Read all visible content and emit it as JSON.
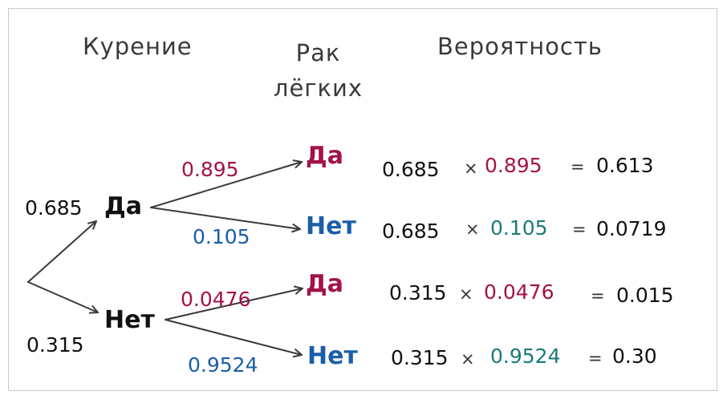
{
  "colors": {
    "yes": "#a3124a",
    "no": "#1a5ea8",
    "no_result": "#1b7a7a",
    "text": "#111111",
    "arrow": "#3a3a3a"
  },
  "headers": {
    "smoking": "Курение",
    "cancer": "Рак\nлёгких",
    "probability": "Вероятность"
  },
  "tree": {
    "smoking_yes_label": "Да",
    "smoking_no_label": "Нет",
    "p_smoke_yes": "0.685",
    "p_smoke_no": "0.315",
    "branches": [
      {
        "prob": "0.895",
        "outcome": "Да"
      },
      {
        "prob": "0.105",
        "outcome": "Нет"
      },
      {
        "prob": "0.0476",
        "outcome": "Да"
      },
      {
        "prob": "0.9524",
        "outcome": "Нет"
      }
    ]
  },
  "results": [
    {
      "a": "0.685",
      "x": "×",
      "b": "0.895",
      "eq": "=",
      "r": "0.613"
    },
    {
      "a": "0.685",
      "x": "×",
      "b": "0.105",
      "eq": "=",
      "r": "0.0719"
    },
    {
      "a": "0.315",
      "x": "×",
      "b": "0.0476",
      "eq": "=",
      "r": "0.015"
    },
    {
      "a": "0.315",
      "x": "×",
      "b": "0.9524",
      "eq": "=",
      "r": "0.30"
    }
  ]
}
